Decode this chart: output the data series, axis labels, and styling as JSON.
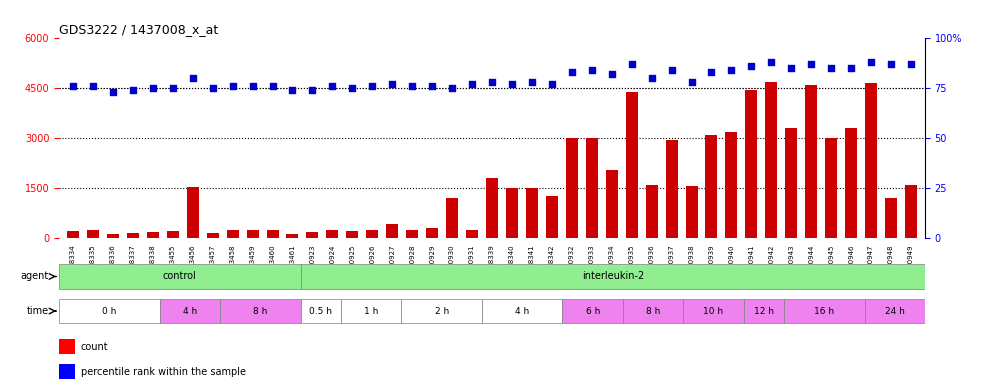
{
  "title": "GDS3222 / 1437008_x_at",
  "categories": [
    "GSM108334",
    "GSM108335",
    "GSM108336",
    "GSM108337",
    "GSM108338",
    "GSM183455",
    "GSM183456",
    "GSM183457",
    "GSM183458",
    "GSM183459",
    "GSM183460",
    "GSM183461",
    "GSM140923",
    "GSM140924",
    "GSM140925",
    "GSM140926",
    "GSM140927",
    "GSM140928",
    "GSM140929",
    "GSM140930",
    "GSM140931",
    "GSM108339",
    "GSM108340",
    "GSM108341",
    "GSM108342",
    "GSM140932",
    "GSM140933",
    "GSM140934",
    "GSM140935",
    "GSM140936",
    "GSM140937",
    "GSM140938",
    "GSM140939",
    "GSM140940",
    "GSM140941",
    "GSM140942",
    "GSM140943",
    "GSM140944",
    "GSM140945",
    "GSM140946",
    "GSM140947",
    "GSM140948",
    "GSM140949"
  ],
  "counts": [
    220,
    240,
    130,
    150,
    190,
    200,
    1520,
    160,
    250,
    250,
    250,
    130,
    170,
    250,
    210,
    250,
    430,
    250,
    290,
    1200,
    250,
    1800,
    1500,
    1500,
    1250,
    3000,
    3000,
    2050,
    4400,
    1600,
    2950,
    1550,
    3100,
    3200,
    4450,
    4700,
    3300,
    4600,
    3000,
    3300,
    4650,
    1200,
    1600
  ],
  "percentiles": [
    76,
    76,
    73,
    74,
    75,
    75,
    80,
    75,
    76,
    76,
    76,
    74,
    74,
    76,
    75,
    76,
    77,
    76,
    76,
    75,
    77,
    78,
    77,
    78,
    77,
    83,
    84,
    82,
    87,
    80,
    84,
    78,
    83,
    84,
    86,
    88,
    85,
    87,
    85,
    85,
    88,
    87,
    87
  ],
  "agent_groups": [
    {
      "label": "control",
      "start": 0,
      "end": 11,
      "color": "#90ee90"
    },
    {
      "label": "interleukin-2",
      "start": 12,
      "end": 42,
      "color": "#90ee90"
    }
  ],
  "time_groups": [
    {
      "label": "0 h",
      "start": 0,
      "end": 4,
      "color": "#ffffff"
    },
    {
      "label": "4 h",
      "start": 5,
      "end": 7,
      "color": "#ee82ee"
    },
    {
      "label": "8 h",
      "start": 8,
      "end": 11,
      "color": "#ee82ee"
    },
    {
      "label": "0.5 h",
      "start": 12,
      "end": 13,
      "color": "#ffffff"
    },
    {
      "label": "1 h",
      "start": 14,
      "end": 16,
      "color": "#ffffff"
    },
    {
      "label": "2 h",
      "start": 17,
      "end": 20,
      "color": "#ffffff"
    },
    {
      "label": "4 h",
      "start": 21,
      "end": 24,
      "color": "#ffffff"
    },
    {
      "label": "6 h",
      "start": 25,
      "end": 27,
      "color": "#ee82ee"
    },
    {
      "label": "8 h",
      "start": 28,
      "end": 30,
      "color": "#ee82ee"
    },
    {
      "label": "10 h",
      "start": 31,
      "end": 33,
      "color": "#ee82ee"
    },
    {
      "label": "12 h",
      "start": 34,
      "end": 35,
      "color": "#ee82ee"
    },
    {
      "label": "16 h",
      "start": 36,
      "end": 39,
      "color": "#ee82ee"
    },
    {
      "label": "24 h",
      "start": 40,
      "end": 42,
      "color": "#ee82ee"
    }
  ],
  "bar_color": "#cc0000",
  "dot_color": "#0000cc",
  "ylim_left": [
    0,
    6000
  ],
  "ylim_right": [
    0,
    100
  ],
  "yticks_left": [
    0,
    1500,
    3000,
    4500,
    6000
  ],
  "yticks_right": [
    0,
    25,
    50,
    75,
    100
  ],
  "grid_values": [
    1500,
    3000,
    4500
  ],
  "background_color": "#f0f0f0"
}
